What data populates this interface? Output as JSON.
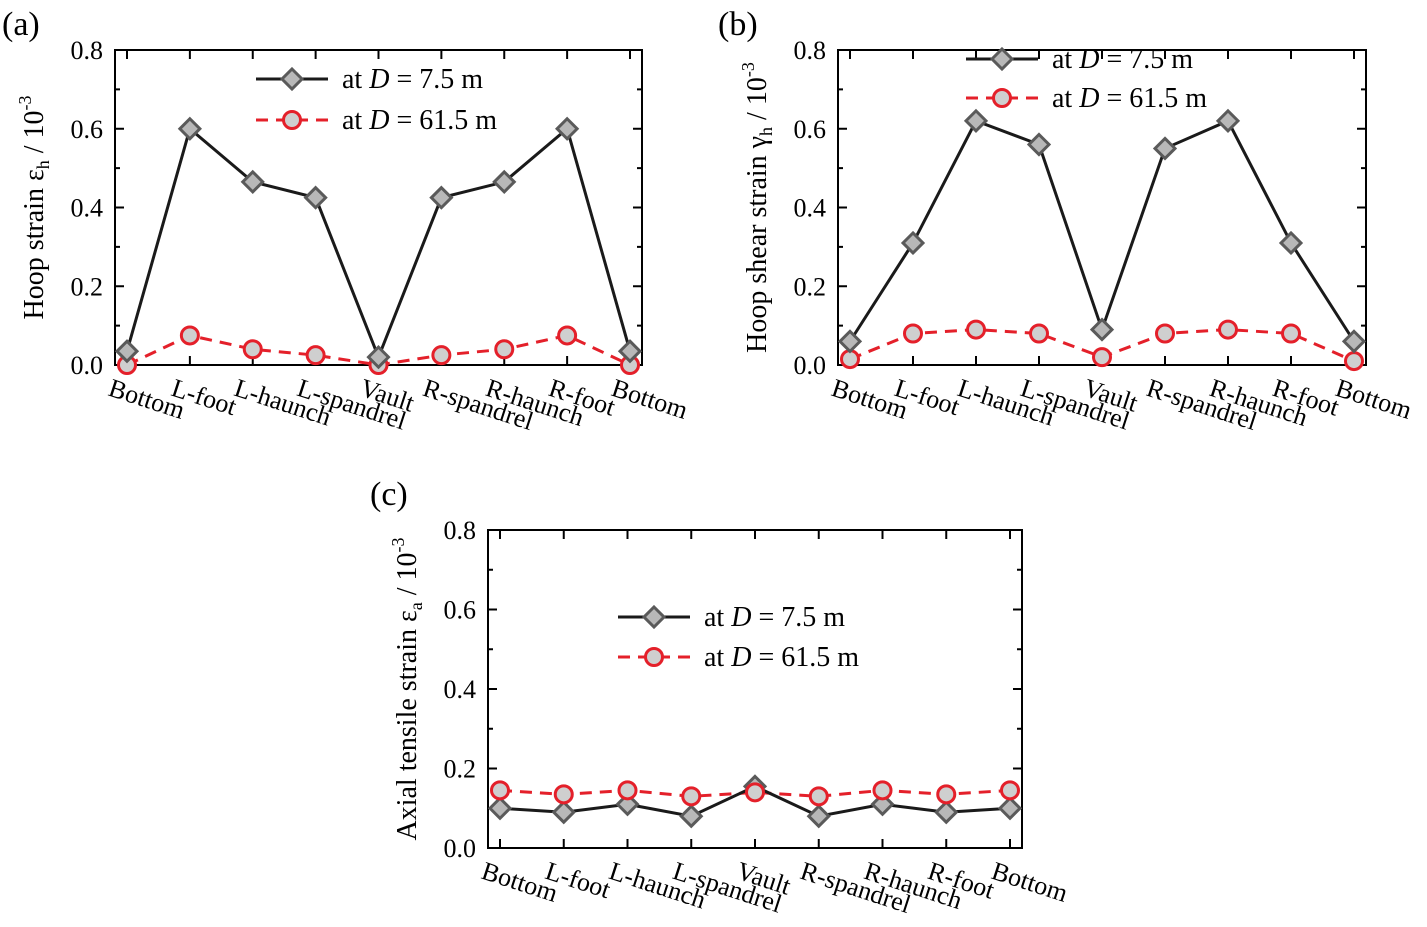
{
  "chart_data": [
    {
      "type": "line",
      "panel_label": "(a)",
      "title": "",
      "xlabel": "",
      "ylabel": {
        "main": "Hoop strain ε",
        "sub": "h",
        "unit": " / 10",
        "exp": "-3"
      },
      "categories": [
        "Bottom",
        "L-foot",
        "L-haunch",
        "L-spandrel",
        "Vault",
        "R-spandrel",
        "R-haunch",
        "R-foot",
        "Bottom"
      ],
      "ylim": [
        0,
        0.8
      ],
      "yticks": [
        "0.0",
        "0.2",
        "0.4",
        "0.6",
        "0.8"
      ],
      "series": [
        {
          "name": "at D = 7.5 m",
          "legend": {
            "prefix": "at ",
            "var": "D",
            "suffix": " = 7.5 m"
          },
          "values": [
            0.035,
            0.6,
            0.465,
            0.425,
            0.02,
            0.425,
            0.465,
            0.6,
            0.035
          ]
        },
        {
          "name": "at D = 61.5 m",
          "legend": {
            "prefix": "at ",
            "var": "D",
            "suffix": " = 61.5 m"
          },
          "values": [
            0.0,
            0.075,
            0.04,
            0.025,
            0.0,
            0.025,
            0.04,
            0.075,
            0.0
          ]
        }
      ]
    },
    {
      "type": "line",
      "panel_label": "(b)",
      "title": "",
      "xlabel": "",
      "ylabel": {
        "main": "Hoop shear strain γ",
        "sub": "h",
        "unit": " / 10",
        "exp": "-3"
      },
      "categories": [
        "Bottom",
        "L-foot",
        "L-haunch",
        "L-spandrel",
        "Vault",
        "R-spandrel",
        "R-haunch",
        "R-foot",
        "Bottom"
      ],
      "ylim": [
        0,
        0.8
      ],
      "yticks": [
        "0.0",
        "0.2",
        "0.4",
        "0.6",
        "0.8"
      ],
      "series": [
        {
          "name": "at D = 7.5 m",
          "legend": {
            "prefix": "at ",
            "var": "D",
            "suffix": " = 7.5 m"
          },
          "values": [
            0.06,
            0.31,
            0.62,
            0.56,
            0.09,
            0.55,
            0.62,
            0.31,
            0.06
          ]
        },
        {
          "name": "at D = 61.5 m",
          "legend": {
            "prefix": "at ",
            "var": "D",
            "suffix": " = 61.5 m"
          },
          "values": [
            0.015,
            0.08,
            0.09,
            0.08,
            0.02,
            0.08,
            0.09,
            0.08,
            0.01
          ]
        }
      ]
    },
    {
      "type": "line",
      "panel_label": "(c)",
      "title": "",
      "xlabel": "",
      "ylabel": {
        "main": "Axial tensile strain ε",
        "sub": "a",
        "unit": " / 10",
        "exp": "-3"
      },
      "categories": [
        "Bottom",
        "L-foot",
        "L-haunch",
        "L-spandrel",
        "Vault",
        "R-spandrel",
        "R-haunch",
        "R-foot",
        "Bottom"
      ],
      "ylim": [
        0,
        0.8
      ],
      "yticks": [
        "0.0",
        "0.2",
        "0.4",
        "0.6",
        "0.8"
      ],
      "series": [
        {
          "name": "at D = 7.5 m",
          "legend": {
            "prefix": "at ",
            "var": "D",
            "suffix": " = 7.5 m"
          },
          "values": [
            0.1,
            0.09,
            0.11,
            0.08,
            0.155,
            0.08,
            0.11,
            0.09,
            0.1
          ]
        },
        {
          "name": "at D = 61.5 m",
          "legend": {
            "prefix": "at ",
            "var": "D",
            "suffix": " = 61.5 m"
          },
          "values": [
            0.145,
            0.135,
            0.145,
            0.13,
            0.14,
            0.13,
            0.145,
            0.135,
            0.145
          ]
        }
      ]
    }
  ],
  "colors": {
    "series1_line": "#1a1a1a",
    "series1_marker_fill": "#b8b8b8",
    "series1_marker_stroke": "#5a5a5a",
    "series2_line": "#e4202a",
    "series2_marker_fill": "#cfcfcf",
    "series2_marker_stroke": "#e4202a"
  }
}
